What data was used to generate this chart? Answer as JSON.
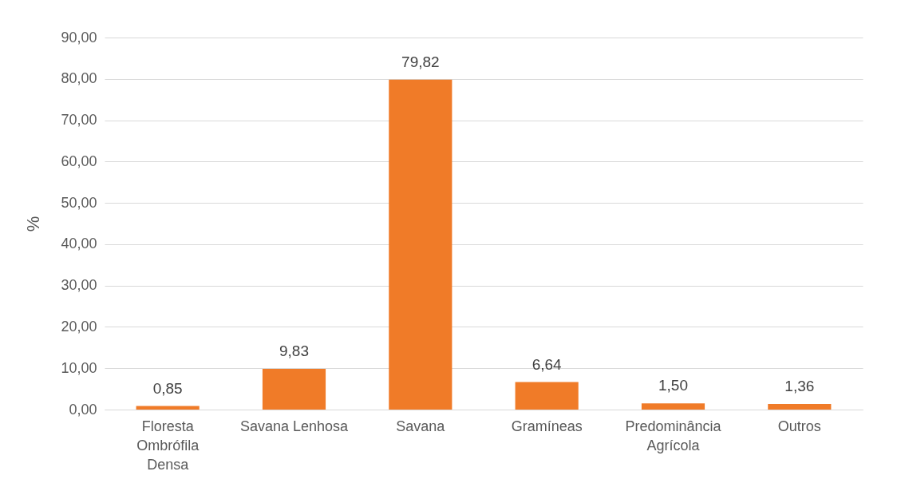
{
  "chart_data": {
    "type": "bar",
    "ylabel": "%",
    "categories": [
      "Floresta Ombrófila Densa",
      "Savana Lenhosa",
      "Savana",
      "Gramíneas",
      "Predominância Agrícola",
      "Outros"
    ],
    "values": [
      0.85,
      9.83,
      79.82,
      6.64,
      1.5,
      1.36
    ],
    "value_labels": [
      "0,85",
      "9,83",
      "79,82",
      "6,64",
      "1,50",
      "1,36"
    ],
    "color": "#f07b28",
    "ylim": [
      0,
      90
    ],
    "yticks": [
      {
        "value": 0,
        "label": "0,00"
      },
      {
        "value": 10,
        "label": "10,00"
      },
      {
        "value": 20,
        "label": "20,00"
      },
      {
        "value": 30,
        "label": "30,00"
      },
      {
        "value": 40,
        "label": "40,00"
      },
      {
        "value": 50,
        "label": "50,00"
      },
      {
        "value": 60,
        "label": "60,00"
      },
      {
        "value": 70,
        "label": "70,00"
      },
      {
        "value": 80,
        "label": "80,00"
      },
      {
        "value": 90,
        "label": "90,00"
      }
    ],
    "grid": "y"
  }
}
